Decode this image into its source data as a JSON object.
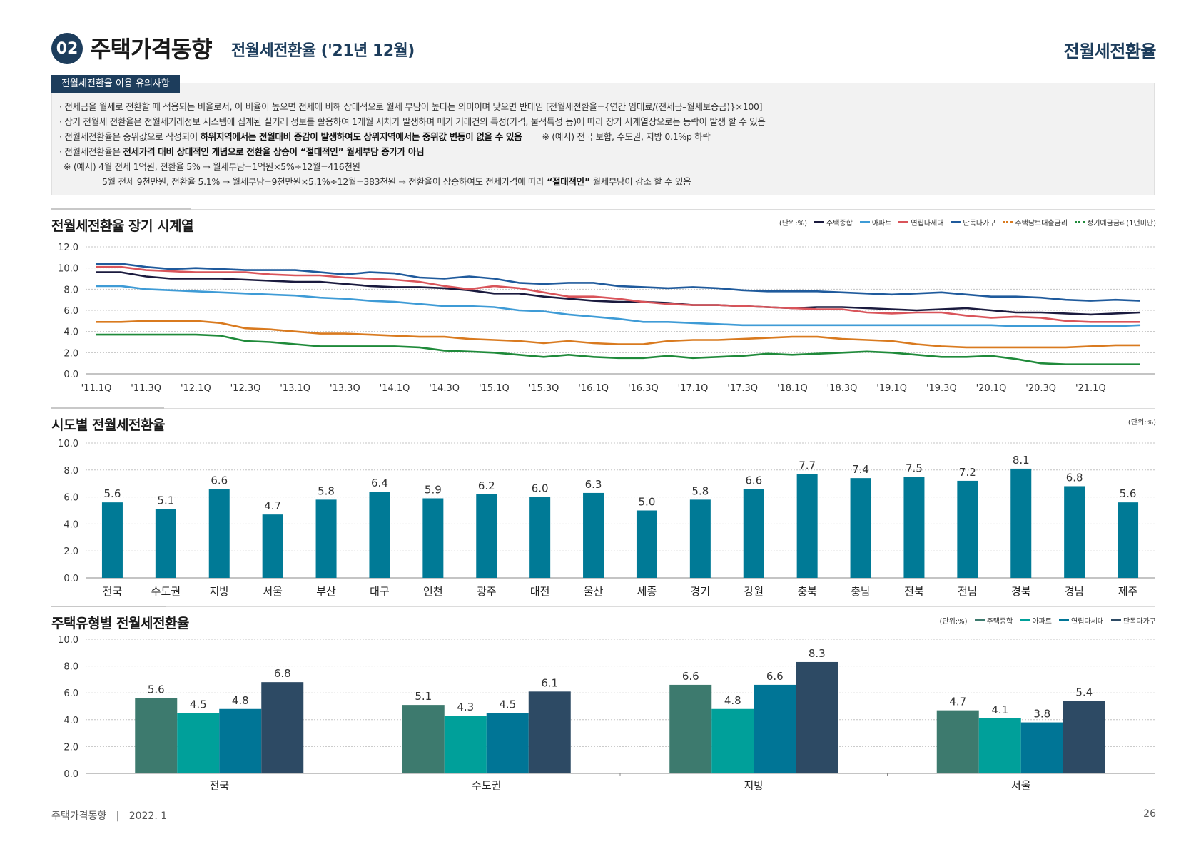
{
  "header": {
    "number": "02",
    "title": "주택가격동향",
    "subtitle": "전월세전환율 ('21년 12월)",
    "right_label": "전월세전환율"
  },
  "notes": {
    "tab": "전월세전환율 이용 유의사항",
    "line1": "· 전세금을 월세로 전환할 때 적용되는 비율로서, 이 비율이 높으면 전세에 비해 상대적으로 월세 부담이 높다는 의미이며 낮으면 반대임 [전월세전환율={연간 임대료/(전세금–월세보증금)}×100]",
    "line2": "· 상기 전월세 전환율은 전월세거래정보 시스템에 집계된 실거래 정보를 활용하여 1개월 시차가 발생하며 매기 거래건의 특성(가격, 물적특성 등)에 따라 장기 시계열상으로는 등락이 발생 할 수 있음",
    "line3_a": "· 전월세전환율은 중위값으로 작성되어 ",
    "line3_b": "하위지역에서는 전월대비 증감이 발생하여도 상위지역에서는 중위값 변동이 없을 수 있음",
    "line3_c": "※ (예시) 전국 보합, 수도권, 지방 0.1%p 하락",
    "line4_a": "· 전월세전환율은 ",
    "line4_b": "전세가격 대비 상대적인 개념으로 전환율 상승이 “절대적인” 월세부담 증가가 아님",
    "line5": "※ (예시) 4월 전세 1억원, 전환율 5% ⇒ 월세부담=1억원×5%÷12월=416천원",
    "line6_a": "5월 전세 9천만원, 전환율 5.1% ⇒ 월세부담=9천만원×5.1%÷12월=383천원 ⇒ 전환율이 상승하여도 전세가격에 따라 ",
    "line6_b": "“절대적인”",
    "line6_c": " 월세부담이 감소 할 수 있음"
  },
  "sections": {
    "s1": "전월세전환율 장기 시계열",
    "s2": "시도별 전월세전환율",
    "s3": "주택유형별 전월세전환율"
  },
  "footer": {
    "left": "주택가격동향   |   2022. 1",
    "page": "26"
  },
  "colors": {
    "navy": "#1d3d5c",
    "bar": "#007a96",
    "grid": "#bdbdbd"
  },
  "chart_data": [
    {
      "type": "line",
      "unit_label": "(단위:%)",
      "ylim": [
        0,
        12
      ],
      "yticks": [
        0.0,
        2.0,
        4.0,
        6.0,
        8.0,
        10.0,
        12.0
      ],
      "x_tick_labels": [
        "'11.1Q",
        "'11.3Q",
        "'12.1Q",
        "'12.3Q",
        "'13.1Q",
        "'13.3Q",
        "'14.1Q",
        "'14.3Q",
        "'15.1Q",
        "'15.3Q",
        "'16.1Q",
        "'16.3Q",
        "'17.1Q",
        "'17.3Q",
        "'18.1Q",
        "'18.3Q",
        "'19.1Q",
        "'19.3Q",
        "'20.1Q",
        "'20.3Q",
        "'21.1Q"
      ],
      "n_points": 43,
      "grid": true,
      "legend_position": "top-right",
      "series": [
        {
          "name": "주택종합",
          "color": "#1a1a3e",
          "style": "solid",
          "values": [
            9.6,
            9.6,
            9.2,
            9.0,
            9.0,
            9.0,
            8.9,
            8.8,
            8.7,
            8.7,
            8.5,
            8.3,
            8.2,
            8.2,
            8.1,
            7.9,
            7.6,
            7.6,
            7.3,
            7.1,
            6.9,
            6.8,
            6.8,
            6.7,
            6.5,
            6.5,
            6.4,
            6.3,
            6.2,
            6.3,
            6.3,
            6.2,
            6.1,
            6.0,
            6.1,
            6.2,
            6.0,
            5.8,
            5.8,
            5.7,
            5.6,
            5.7,
            5.8
          ]
        },
        {
          "name": "아파트",
          "color": "#3e9bd6",
          "style": "solid",
          "values": [
            8.3,
            8.3,
            8.0,
            7.9,
            7.8,
            7.7,
            7.6,
            7.5,
            7.4,
            7.2,
            7.1,
            6.9,
            6.8,
            6.6,
            6.4,
            6.4,
            6.3,
            6.0,
            5.9,
            5.6,
            5.4,
            5.2,
            4.9,
            4.9,
            4.8,
            4.7,
            4.6,
            4.6,
            4.6,
            4.6,
            4.6,
            4.6,
            4.6,
            4.6,
            4.6,
            4.6,
            4.6,
            4.5,
            4.5,
            4.5,
            4.5,
            4.5,
            4.6
          ]
        },
        {
          "name": "연립다세대",
          "color": "#d9545a",
          "style": "solid",
          "values": [
            10.1,
            10.1,
            9.8,
            9.7,
            9.6,
            9.6,
            9.6,
            9.4,
            9.3,
            9.3,
            9.1,
            9.0,
            8.9,
            8.7,
            8.3,
            8.0,
            8.3,
            8.1,
            7.7,
            7.3,
            7.3,
            7.1,
            6.8,
            6.6,
            6.5,
            6.5,
            6.4,
            6.3,
            6.2,
            6.1,
            6.1,
            5.8,
            5.7,
            5.8,
            5.8,
            5.5,
            5.3,
            5.4,
            5.3,
            5.0,
            4.9,
            4.9,
            4.9
          ]
        },
        {
          "name": "단독다가구",
          "color": "#1f5a9c",
          "style": "solid",
          "values": [
            10.4,
            10.4,
            10.1,
            9.9,
            10.0,
            9.9,
            9.8,
            9.8,
            9.8,
            9.6,
            9.4,
            9.6,
            9.5,
            9.1,
            9.0,
            9.2,
            9.0,
            8.6,
            8.5,
            8.6,
            8.6,
            8.3,
            8.2,
            8.1,
            8.2,
            8.1,
            7.9,
            7.8,
            7.8,
            7.8,
            7.7,
            7.6,
            7.5,
            7.6,
            7.7,
            7.5,
            7.3,
            7.3,
            7.2,
            7.0,
            6.9,
            7.0,
            6.9
          ]
        },
        {
          "name": "주택담보대출금리",
          "color": "#d97a1f",
          "style": "dotted",
          "values": [
            4.9,
            4.9,
            5.0,
            5.0,
            5.0,
            4.8,
            4.3,
            4.2,
            4.0,
            3.8,
            3.8,
            3.7,
            3.6,
            3.5,
            3.5,
            3.3,
            3.2,
            3.1,
            2.9,
            3.1,
            2.9,
            2.8,
            2.8,
            3.1,
            3.2,
            3.2,
            3.3,
            3.4,
            3.5,
            3.5,
            3.3,
            3.2,
            3.1,
            2.8,
            2.6,
            2.5,
            2.5,
            2.5,
            2.5,
            2.5,
            2.6,
            2.7,
            2.7
          ]
        },
        {
          "name": "정기예금금리(1년미만)",
          "color": "#1f8a3a",
          "style": "dotted",
          "values": [
            3.7,
            3.7,
            3.7,
            3.7,
            3.7,
            3.6,
            3.1,
            3.0,
            2.8,
            2.6,
            2.6,
            2.6,
            2.6,
            2.5,
            2.2,
            2.1,
            2.0,
            1.8,
            1.6,
            1.8,
            1.6,
            1.5,
            1.5,
            1.7,
            1.5,
            1.6,
            1.7,
            1.9,
            1.8,
            1.9,
            2.0,
            2.1,
            2.0,
            1.8,
            1.6,
            1.6,
            1.7,
            1.4,
            1.0,
            0.9,
            0.9,
            0.9,
            0.9
          ]
        }
      ]
    },
    {
      "type": "bar",
      "unit_label": "(단위:%)",
      "ylim": [
        0,
        10
      ],
      "yticks": [
        0.0,
        2.0,
        4.0,
        6.0,
        8.0,
        10.0
      ],
      "categories": [
        "전국",
        "수도권",
        "지방",
        "서울",
        "부산",
        "대구",
        "인천",
        "광주",
        "대전",
        "울산",
        "세종",
        "경기",
        "강원",
        "충북",
        "충남",
        "전북",
        "전남",
        "경북",
        "경남",
        "제주"
      ],
      "values": [
        5.6,
        5.1,
        6.6,
        4.7,
        5.8,
        6.4,
        5.9,
        6.2,
        6.0,
        6.3,
        5.0,
        5.8,
        6.6,
        7.7,
        7.4,
        7.5,
        7.2,
        8.1,
        6.8,
        5.6
      ],
      "value_labels": [
        "5.6",
        "5.1",
        "6.6",
        "4.7",
        "5.8",
        "6.4",
        "5.9",
        "6.2",
        "6.0",
        "6.3",
        "5.0",
        "5.8",
        "6.6",
        "7.7",
        "7.4",
        "7.5",
        "7.2",
        "8.1",
        "6.8",
        "5.6"
      ],
      "color": "#007a96",
      "grid": true
    },
    {
      "type": "bar",
      "unit_label": "(단위:%)",
      "ylim": [
        0,
        10
      ],
      "yticks": [
        0.0,
        2.0,
        4.0,
        6.0,
        8.0,
        10.0
      ],
      "categories": [
        "전국",
        "수도권",
        "지방",
        "서울"
      ],
      "grid": true,
      "legend_position": "top-right",
      "series": [
        {
          "name": "주택종합",
          "color": "#3d7a6e",
          "values": [
            5.6,
            5.1,
            6.6,
            4.7
          ],
          "labels": [
            "5.6",
            "5.1",
            "6.6",
            "4.7"
          ]
        },
        {
          "name": "아파트",
          "color": "#00a09a",
          "values": [
            4.5,
            4.3,
            4.8,
            4.1
          ],
          "labels": [
            "4.5",
            "4.3",
            "4.8",
            "4.1"
          ]
        },
        {
          "name": "연립다세대",
          "color": "#007596",
          "values": [
            4.8,
            4.5,
            6.6,
            3.8
          ],
          "labels": [
            "4.8",
            "4.5",
            "6.6",
            "3.8"
          ]
        },
        {
          "name": "단독다가구",
          "color": "#2d4a64",
          "values": [
            6.8,
            6.1,
            8.3,
            5.4
          ],
          "labels": [
            "6.8",
            "6.1",
            "8.3",
            "5.4"
          ]
        }
      ]
    }
  ]
}
